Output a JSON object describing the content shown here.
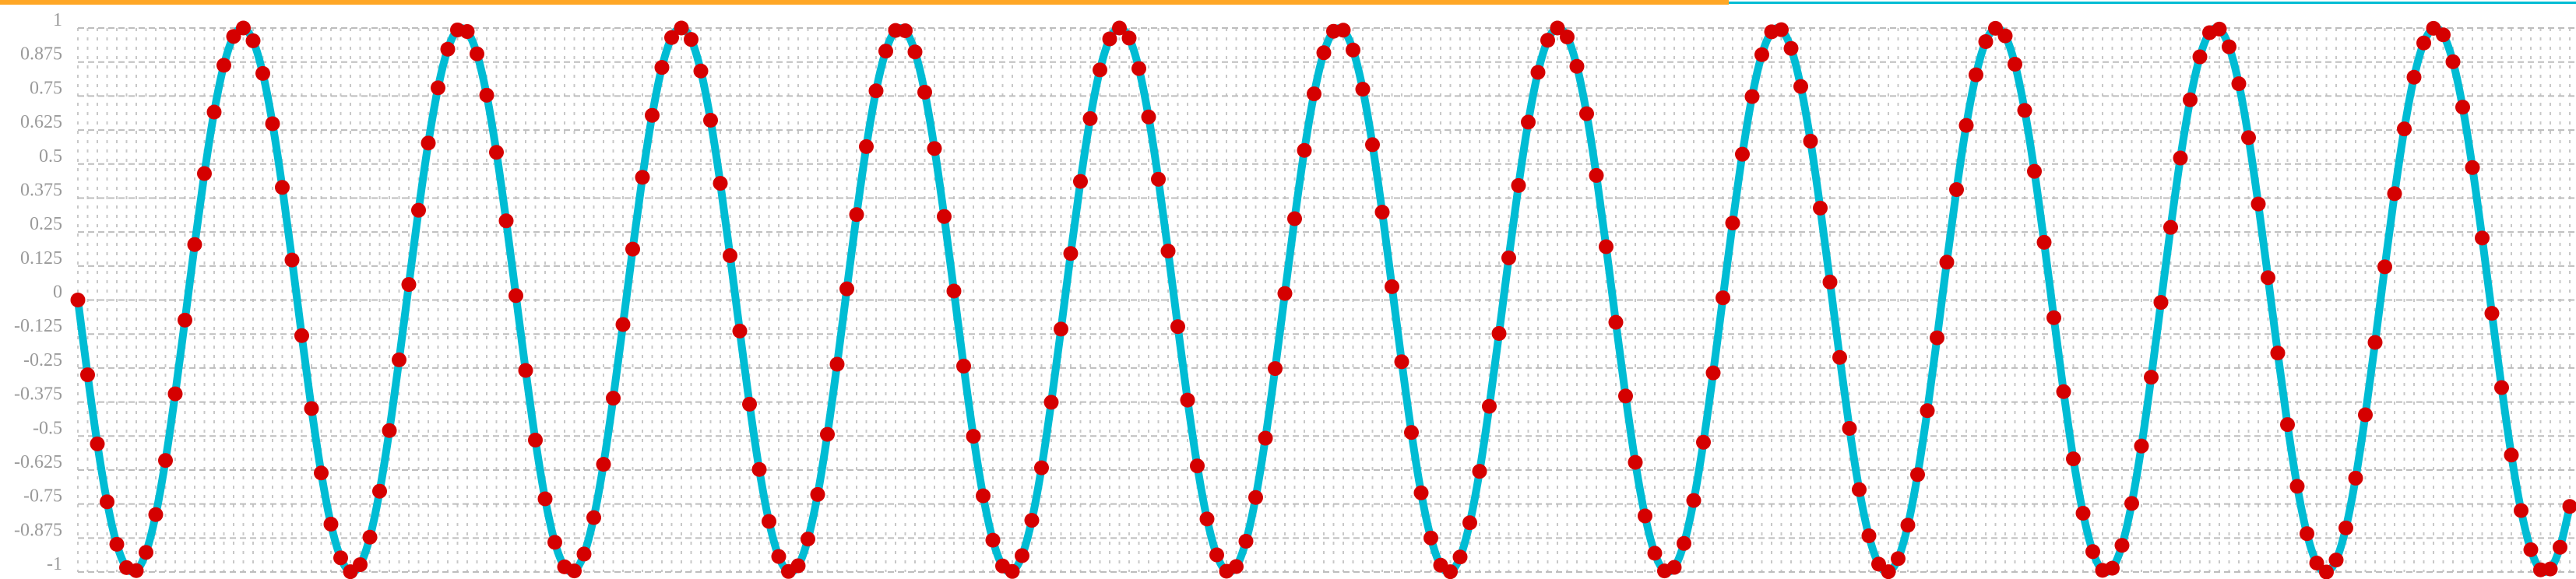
{
  "progress": {
    "value": 0.671,
    "fill_color": "#ffa726",
    "track_color": "#00bcd4"
  },
  "chart_data": {
    "type": "line",
    "title": "",
    "xlabel": "",
    "ylabel": "",
    "ylim": [
      -1,
      1
    ],
    "xlim": [
      0,
      256
    ],
    "grid": true,
    "legend": "none",
    "y_ticks": [
      "1",
      "0.875",
      "0.75",
      "0.625",
      "0.5",
      "0.375",
      "0.25",
      "0.125",
      "0",
      "-0.125",
      "-0.25",
      "-0.375",
      "-0.5",
      "-0.625",
      "-0.75",
      "-0.875",
      "-1"
    ],
    "line_color": "#00bcd4",
    "marker_color": "#d50000",
    "series": [
      {
        "values": [
          0,
          -0.275,
          -0.529,
          -0.742,
          -0.898,
          -0.984,
          -0.995,
          -0.928,
          -0.789,
          -0.59,
          -0.345,
          -0.074,
          0.204,
          0.465,
          0.691,
          0.863,
          0.969,
          1,
          0.953,
          0.833,
          0.648,
          0.414,
          0.147,
          -0.131,
          -0.399,
          -0.636,
          -0.824,
          -0.948,
          -0.999,
          -0.973,
          -0.872,
          -0.703,
          -0.48,
          -0.22,
          0.057,
          0.33,
          0.577,
          0.78,
          0.922,
          0.993,
          0.987,
          0.905,
          0.753,
          0.543,
          0.291,
          0.016,
          -0.259,
          -0.515,
          -0.731,
          -0.891,
          -0.981,
          -0.996,
          -0.934,
          -0.8,
          -0.604,
          -0.361,
          -0.09,
          0.187,
          0.451,
          0.679,
          0.855,
          0.965,
          1,
          0.958,
          0.842,
          0.661,
          0.429,
          0.163,
          -0.114,
          -0.383,
          -0.623,
          -0.814,
          -0.943,
          -0.998,
          -0.977,
          -0.879,
          -0.715,
          -0.494,
          -0.236,
          0.041,
          0.314,
          0.564,
          0.769,
          0.915,
          0.991,
          0.99,
          0.912,
          0.764,
          0.557,
          0.307,
          0.033,
          -0.243,
          -0.501,
          -0.72,
          -0.883,
          -0.978,
          -0.998,
          -0.94,
          -0.81,
          -0.617,
          -0.376,
          -0.107,
          0.171,
          0.436,
          0.667,
          0.846,
          0.96,
          1,
          0.963,
          0.851,
          0.673,
          0.444,
          0.18,
          -0.098,
          -0.368,
          -0.61,
          -0.805,
          -0.937,
          -0.997,
          -0.98,
          -0.887,
          -0.726,
          -0.508,
          -0.252,
          0.024,
          0.299,
          0.55,
          0.758,
          0.909,
          0.988,
          0.992,
          0.919,
          0.775,
          0.571,
          0.323,
          0.049,
          -0.227,
          -0.487,
          -0.709,
          -0.875,
          -0.975,
          -0.999,
          -0.945,
          -0.819,
          -0.63,
          -0.391,
          -0.123,
          0.155,
          0.421,
          0.654,
          0.837,
          0.955,
          1,
          0.967,
          0.859,
          0.685,
          0.458,
          0.196,
          -0.082,
          -0.353,
          -0.597,
          -0.794,
          -0.931,
          -0.996,
          -0.983,
          -0.895,
          -0.737,
          -0.523,
          -0.268,
          0.008,
          0.283,
          0.536,
          0.748,
          0.902,
          0.986,
          0.994,
          0.925,
          0.785,
          0.584,
          0.338,
          0.066,
          -0.211,
          -0.472,
          -0.697,
          -0.867,
          -0.971,
          -0.999,
          -0.951,
          -0.828,
          -0.642,
          -0.407,
          -0.139,
          0.139,
          0.406,
          0.642,
          0.828,
          0.95,
          0.999,
          0.971,
          0.867,
          0.697,
          0.473,
          0.212,
          -0.065,
          -0.337,
          -0.584,
          -0.784,
          -0.925,
          -0.994,
          -0.986,
          -0.902,
          -0.748,
          -0.537,
          -0.284,
          -0.009,
          0.267,
          0.522,
          0.736,
          0.894,
          0.983,
          0.996,
          0.931,
          0.795,
          0.597,
          0.353,
          0.082,
          -0.195,
          -0.458,
          -0.685,
          -0.859,
          -0.967,
          -1,
          -0.956,
          -0.838,
          -0.655,
          -0.422,
          -0.156,
          0.122,
          0.391,
          0.629,
          0.819,
          0.945,
          0.999,
          0.975,
          0.876,
          0.709,
          0.487,
          0.228,
          -0.049,
          -0.322,
          -0.57,
          -0.774,
          -0.918,
          -0.992,
          -0.989,
          -0.909,
          -0.759
        ]
      }
    ]
  }
}
